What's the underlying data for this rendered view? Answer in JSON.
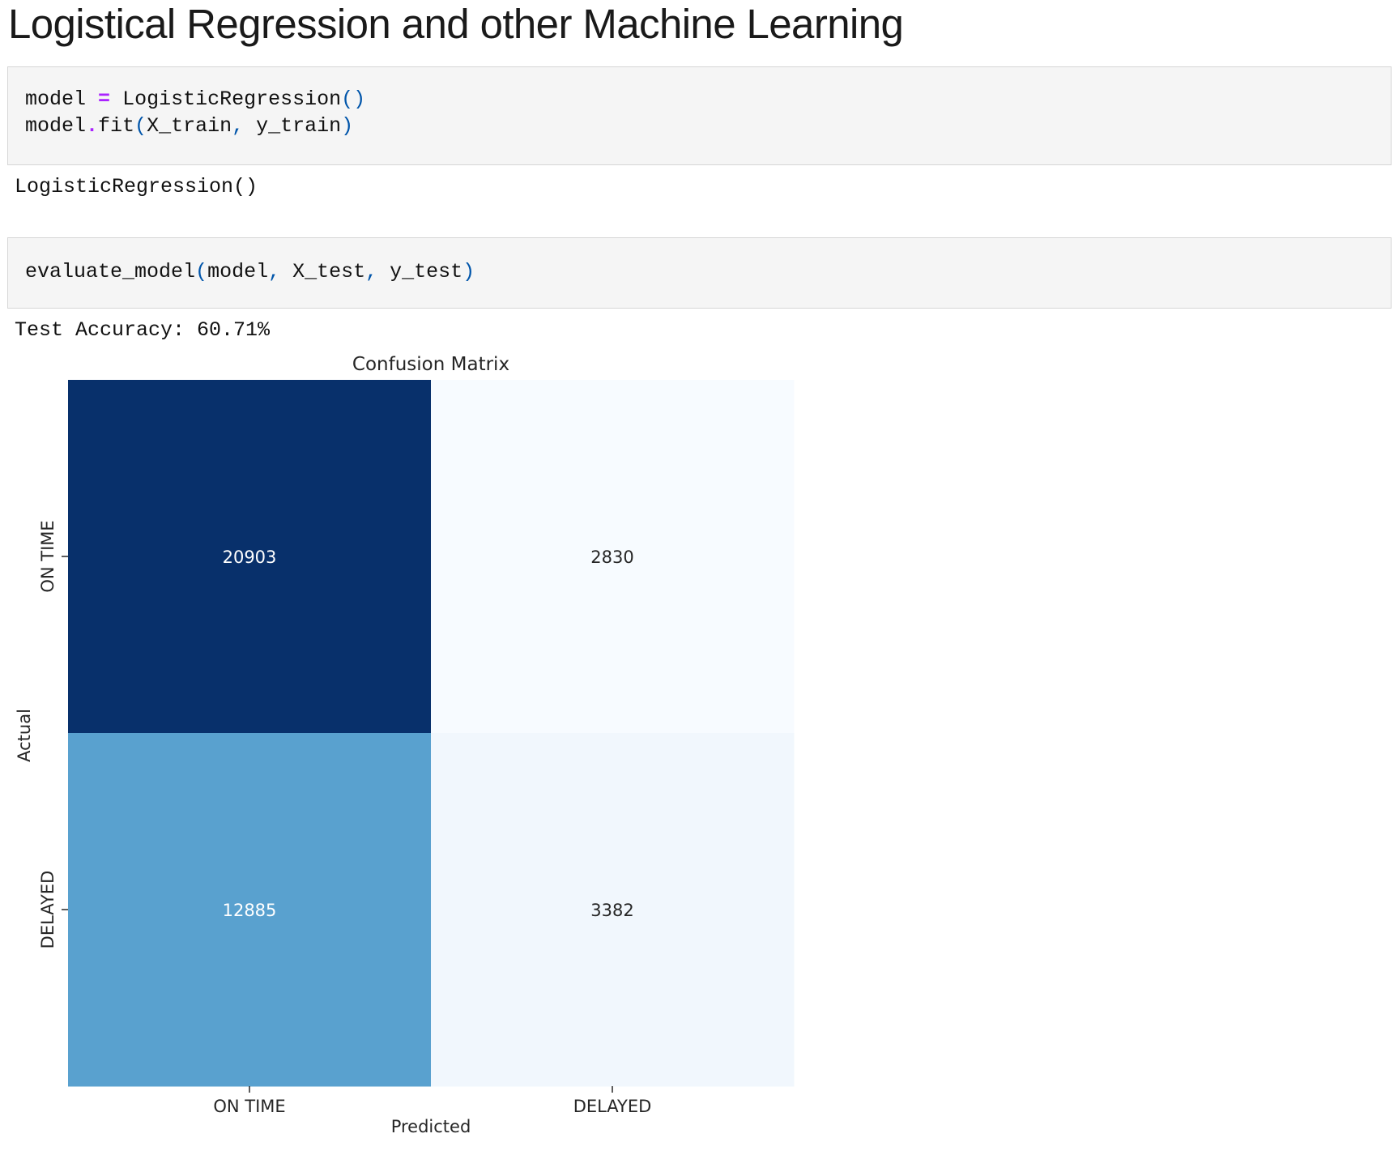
{
  "page": {
    "heading": "Logistical Regression and other Machine Learning"
  },
  "cells": {
    "cell1": {
      "line1": {
        "var": "model",
        "op": "=",
        "call": "LogisticRegression",
        "open": "(",
        "close": ")"
      },
      "line2": {
        "obj": "model",
        "dot": ".",
        "method": "fit",
        "open": "(",
        "arg1": "X_train",
        "comma": ",",
        "arg2": "y_train",
        "close": ")"
      },
      "output": "LogisticRegression()"
    },
    "cell2": {
      "line1": {
        "func": "evaluate_model",
        "open": "(",
        "arg1": "model",
        "comma1": ",",
        "arg2": "X_test",
        "comma2": ",",
        "arg3": "y_test",
        "close": ")"
      },
      "output": "Test Accuracy: 60.71%"
    }
  },
  "colors": {
    "operator": "#aa22ff",
    "punctuation": "#0055aa",
    "cell_background": "#f5f5f5",
    "colormap": "Blues"
  },
  "chart_data": {
    "type": "heatmap",
    "title": "Confusion Matrix",
    "xlabel": "Predicted",
    "ylabel": "Actual",
    "x_categories": [
      "ON TIME",
      "DELAYED"
    ],
    "y_categories": [
      "ON TIME",
      "DELAYED"
    ],
    "values": [
      [
        20903,
        2830
      ],
      [
        12885,
        3382
      ]
    ],
    "colorbar": false,
    "grid": false
  }
}
